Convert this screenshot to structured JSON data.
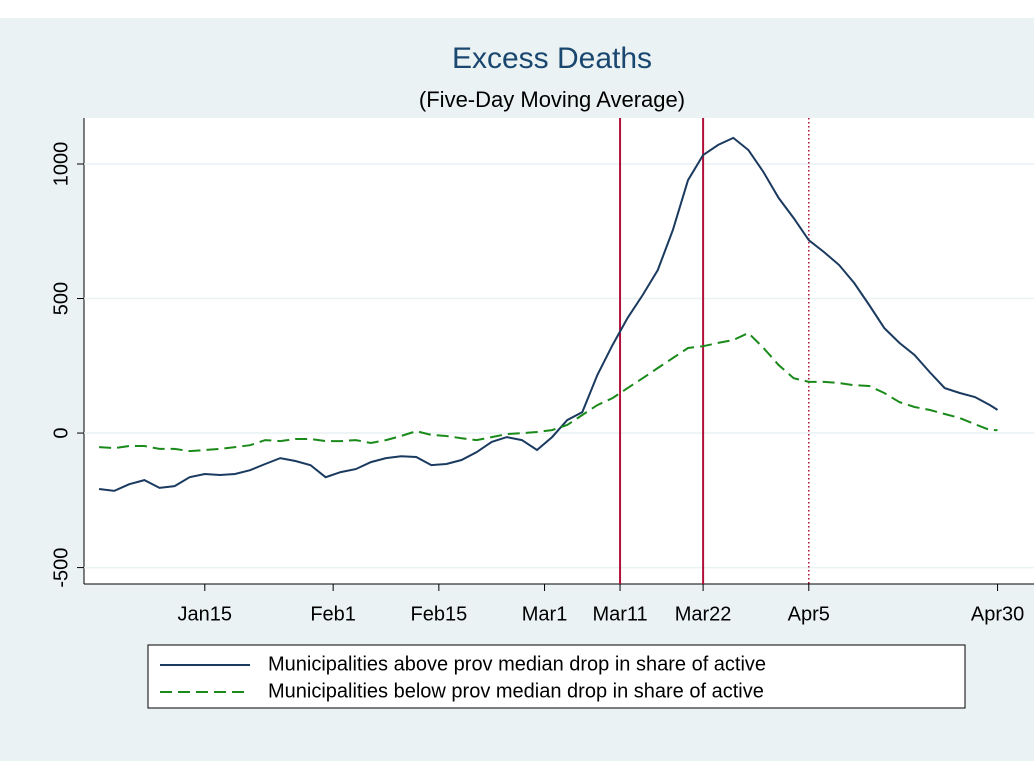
{
  "chart_data": {
    "type": "line",
    "title": "Excess Deaths",
    "subtitle": "(Five-Day Moving Average)",
    "x": [
      1,
      3,
      5,
      7,
      9,
      11,
      13,
      15,
      17,
      19,
      21,
      23,
      25,
      27,
      29,
      31,
      33,
      35,
      37,
      39,
      41,
      43,
      45,
      47,
      49,
      51,
      53,
      55,
      57,
      59,
      61,
      63,
      65,
      67,
      69,
      71,
      73,
      75,
      77,
      79,
      81,
      83,
      85,
      87,
      89,
      91,
      93,
      95,
      97,
      99,
      101,
      103,
      105,
      107,
      109,
      111,
      113,
      115,
      117,
      119,
      120
    ],
    "series": [
      {
        "name": "Municipalities above prov median drop in share of active",
        "color": "#1a3a5f",
        "dash": "solid",
        "values": [
          -208,
          -215,
          -190,
          -175,
          -204,
          -197,
          -164,
          -152,
          -156,
          -152,
          -138,
          -115,
          -93,
          -104,
          -119,
          -164,
          -145,
          -134,
          -108,
          -93,
          -86,
          -89,
          -119,
          -115,
          -100,
          -71,
          -33,
          -15,
          -26,
          -63,
          -15,
          48,
          78,
          216,
          327,
          428,
          513,
          606,
          755,
          940,
          1033,
          1071,
          1097,
          1052,
          970,
          874,
          799,
          717,
          673,
          625,
          558,
          476,
          390,
          335,
          290,
          227,
          167,
          149,
          134,
          104,
          86
        ]
      },
      {
        "name": "Municipalities below prov median drop in share of active",
        "color": "#1a8a1a",
        "dash": "dashed",
        "values": [
          -52,
          -56,
          -48,
          -48,
          -59,
          -59,
          -67,
          -63,
          -59,
          -52,
          -45,
          -26,
          -30,
          -22,
          -22,
          -30,
          -30,
          -26,
          -37,
          -26,
          -11,
          7,
          -7,
          -11,
          -19,
          -26,
          -15,
          -4,
          0,
          4,
          11,
          30,
          67,
          104,
          130,
          167,
          204,
          242,
          279,
          316,
          323,
          335,
          346,
          372,
          316,
          253,
          204,
          190,
          190,
          186,
          178,
          175,
          149,
          115,
          97,
          86,
          71,
          56,
          33,
          11,
          11
        ]
      }
    ],
    "xlim": [
      -1,
      123
    ],
    "xticks": [
      {
        "value": 15,
        "label": "Jan15"
      },
      {
        "value": 32,
        "label": "Feb1"
      },
      {
        "value": 46,
        "label": "Feb15"
      },
      {
        "value": 60,
        "label": "Mar1"
      },
      {
        "value": 70,
        "label": "Mar11"
      },
      {
        "value": 81,
        "label": "Mar22"
      },
      {
        "value": 95,
        "label": "Apr5"
      },
      {
        "value": 120,
        "label": "Apr30"
      }
    ],
    "ylim": [
      -561,
      1171
    ],
    "yticks": [
      -500,
      0,
      500,
      1000
    ],
    "grid": true,
    "reference_lines": [
      {
        "x": 70,
        "style": "solid",
        "color": "#b0103a"
      },
      {
        "x": 81,
        "style": "solid",
        "color": "#b0103a"
      },
      {
        "x": 95,
        "style": "dotted",
        "color": "#b0103a"
      }
    ]
  }
}
